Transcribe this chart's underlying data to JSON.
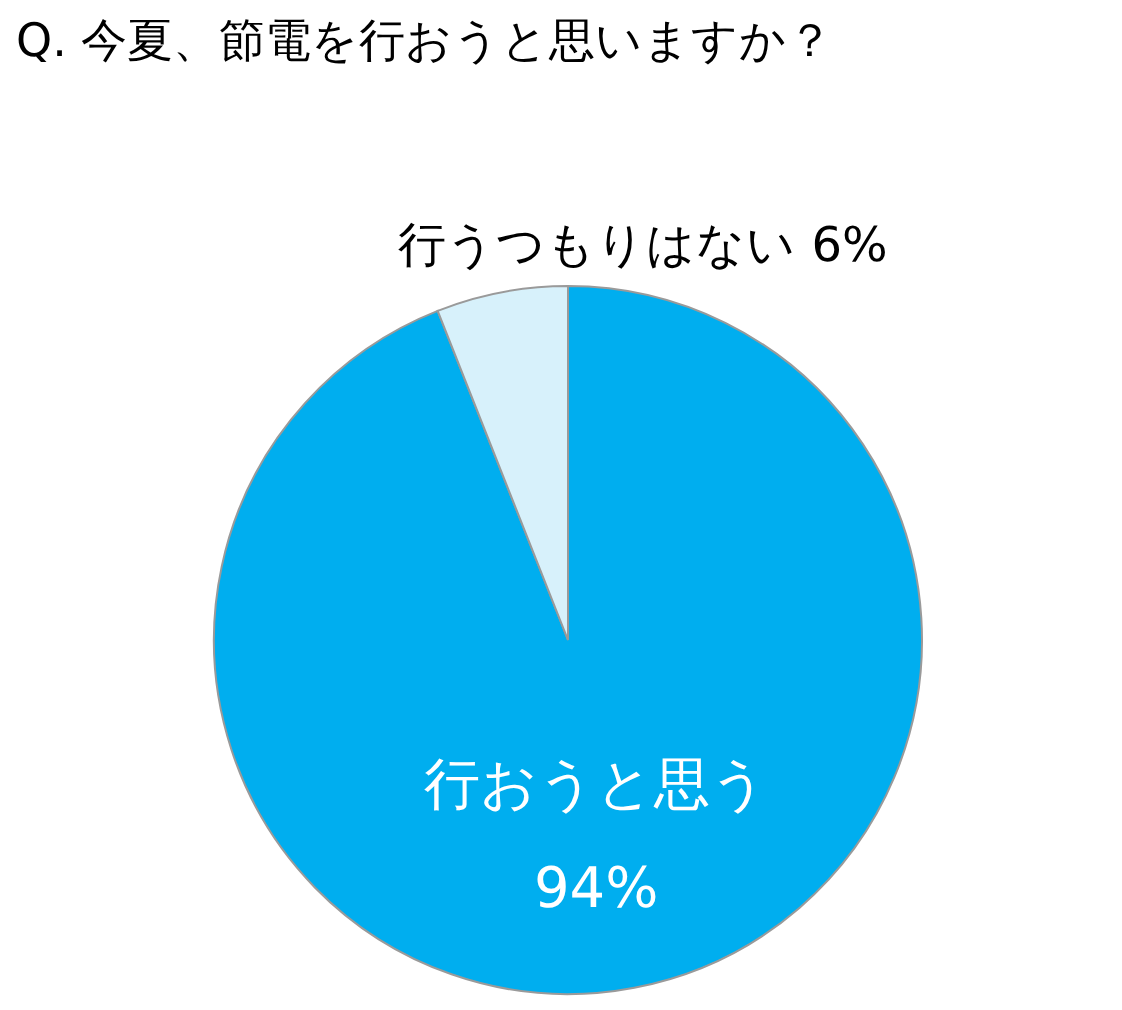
{
  "chart_data": {
    "type": "pie",
    "title": "Q. 今夏、節電を行おうと思いますか？",
    "categories": [
      "行おうと思う",
      "行うつもりはない"
    ],
    "values": [
      94,
      6
    ],
    "colors": [
      "#00aeef",
      "#d7f1fb"
    ],
    "value_labels": [
      "94%",
      "6%"
    ]
  }
}
